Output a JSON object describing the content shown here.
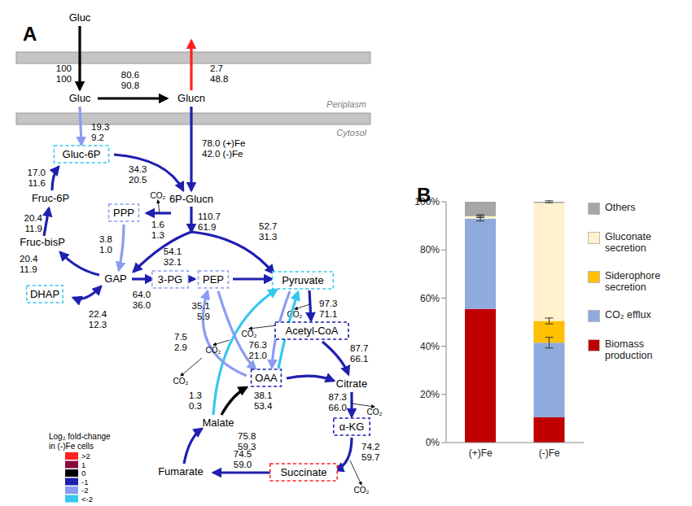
{
  "panel_labels": [
    "A",
    "B"
  ],
  "diagram": {
    "membrane_labels": [
      "Periplasm",
      "Cytosol"
    ],
    "co2_label": "CO₂",
    "nodes": [
      {
        "label": "Gluc"
      },
      {
        "label": "Gluc"
      },
      {
        "label": "Glucn"
      },
      {
        "label": "Gluc-6P",
        "color": "#33c7f0"
      },
      {
        "label": "6P-Glucn"
      },
      {
        "label": "Fruc-6P"
      },
      {
        "label": "PPP",
        "color": "#8b9cf0"
      },
      {
        "label": "Fruc-bisP"
      },
      {
        "label": "GAP"
      },
      {
        "label": "DHAP",
        "color": "#33c7f0"
      },
      {
        "label": "3-PG",
        "color": "#8b9cf0"
      },
      {
        "label": "PEP",
        "color": "#8b9cf0"
      },
      {
        "label": "Pyruvate",
        "color": "#33c7f0"
      },
      {
        "label": "Acetyl-CoA",
        "color": "#1f1fb0"
      },
      {
        "label": "OAA",
        "color": "#1f1fb0"
      },
      {
        "label": "Citrate"
      },
      {
        "label": "Malate"
      },
      {
        "label": "α-KG",
        "color": "#1f1fb0"
      },
      {
        "label": "Fumarate"
      },
      {
        "label": "Succinate",
        "color": "#ff2020"
      }
    ],
    "edges": [
      {
        "color": "#000000",
        "values": [
          "100",
          "100"
        ]
      },
      {
        "color": "#000000",
        "values": [
          "80.6",
          "90.8"
        ]
      },
      {
        "color": "#ff2020",
        "values": [
          "2.7",
          "48.8"
        ]
      },
      {
        "color": "#8b9cf0",
        "values": [
          "19.3",
          "9.2"
        ]
      },
      {
        "color": "#1f1fb0",
        "values": [
          "78.0 (+)Fe",
          "42.0 (-)Fe"
        ]
      },
      {
        "color": "#1f1fb0",
        "values": [
          "34.3",
          "20.5"
        ]
      },
      {
        "color": "#1f1fb0",
        "values": [
          "17.0",
          "11.6"
        ]
      },
      {
        "color": "#1f1fb0",
        "values": [
          "20.4",
          "11.9"
        ]
      },
      {
        "color": "#1f1fb0",
        "values": [
          "1.6",
          "1.3"
        ]
      },
      {
        "color": "#8b9cf0",
        "values": [
          "3.8",
          "1.0"
        ]
      },
      {
        "color": "#1f1fb0",
        "values": [
          "20.4",
          "11.9"
        ]
      },
      {
        "color": "#1f1fb0",
        "values": [
          "22.4",
          "12.3"
        ]
      },
      {
        "color": "#1f1fb0",
        "values": [
          "64.0",
          "36.0"
        ]
      },
      {
        "color": "#1f1fb0",
        "values": [
          "110.7",
          "61.9"
        ]
      },
      {
        "color": "#1f1fb0",
        "values": [
          "54.1",
          "32.1"
        ]
      },
      {
        "color": "#1f1fb0",
        "values": [
          "52.7",
          "31.3"
        ]
      },
      {
        "color": "#1f1fb0"
      },
      {
        "color": "#1f1fb0"
      },
      {
        "color": "#1f1fb0",
        "values": [
          "97.3",
          "71.1"
        ]
      },
      {
        "color": "#1f1fb0",
        "values": [
          "87.7",
          "66.1"
        ]
      },
      {
        "color": "#1f1fb0"
      },
      {
        "color": "#1f1fb0",
        "values": [
          "87.3",
          "66.0"
        ]
      },
      {
        "color": "#1f1fb0",
        "values": [
          "74.2",
          "59.7"
        ]
      },
      {
        "color": "#1f1fb0",
        "values": [
          "74.5",
          "59.0"
        ]
      },
      {
        "color": "#1f1fb0",
        "values": [
          "75.8",
          "59.3"
        ]
      },
      {
        "color": "#000000",
        "values": [
          "38.1",
          "53.4"
        ]
      },
      {
        "color": "#33c7f0",
        "values": [
          "1.3",
          "0.3"
        ]
      },
      {
        "color": "#8b9cf0",
        "values": [
          "7.5",
          "2.9"
        ]
      },
      {
        "color": "#8b9cf0",
        "values": [
          "35.1",
          "5.9"
        ]
      },
      {
        "color": "#8b9cf0",
        "values": [
          "76.3",
          "21.0"
        ]
      },
      {
        "color": "#33c7f0"
      }
    ],
    "legend": {
      "title": [
        "Log₂ fold-change",
        "in (-)Fe cells"
      ],
      "items": [
        {
          "label": ">2",
          "color": "#ff2020"
        },
        {
          "label": "1",
          "color": "#8b0a3c"
        },
        {
          "label": "0",
          "color": "#000000"
        },
        {
          "label": "-1",
          "color": "#1f1fb0"
        },
        {
          "label": "-2",
          "color": "#8b9cf0"
        },
        {
          "label": "<-2",
          "color": "#33c7f0"
        }
      ]
    }
  },
  "chart_data": {
    "type": "bar",
    "stacked": true,
    "categories": [
      "(+)Fe",
      "(-)Fe"
    ],
    "series": [
      {
        "name": "Biomass production",
        "color": "#c00000",
        "values": [
          55.5,
          10.5
        ]
      },
      {
        "name": "CO₂ efflux",
        "color": "#8faadc",
        "values": [
          37.5,
          31
        ],
        "errors": [
          1,
          2.2
        ]
      },
      {
        "name": "Siderophore secretion",
        "color": "#ffc000",
        "values": [
          0,
          9
        ],
        "errors": [
          null,
          1.2
        ]
      },
      {
        "name": "Gluconate secretion",
        "color": "#fff2cc",
        "values": [
          1,
          49
        ],
        "errors": [
          0.6,
          null
        ]
      },
      {
        "name": "Others",
        "color": "#a6a6a6",
        "values": [
          6,
          0.5
        ],
        "errors": [
          null,
          0.4
        ]
      }
    ],
    "ylim": [
      0,
      100
    ],
    "yticks": [
      {
        "value": 0,
        "label": "0%"
      },
      {
        "value": 20,
        "label": "20%"
      },
      {
        "value": 40,
        "label": "40%"
      },
      {
        "value": 60,
        "label": "60%"
      },
      {
        "value": 80,
        "label": "80%"
      },
      {
        "value": 100,
        "label": "100%"
      }
    ],
    "grid": false,
    "legend": "right"
  }
}
